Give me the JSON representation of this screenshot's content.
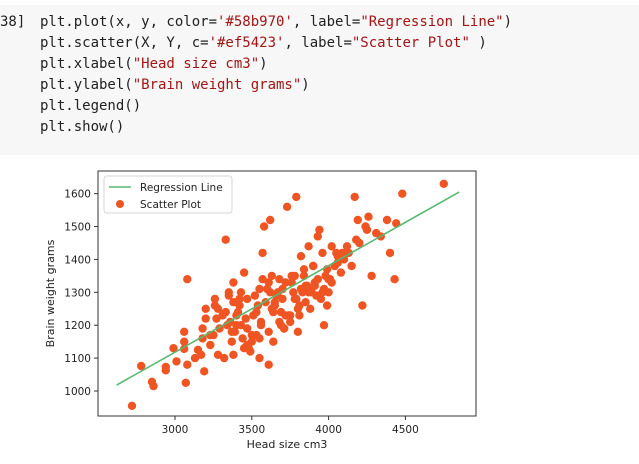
{
  "cell": {
    "prompt": "38]",
    "lines": [
      {
        "pre": "plt.plot(x, y, color=",
        "s1": "'#58b970'",
        "mid": ", label=",
        "s2": "\"Regression Line\"",
        "post": ")"
      },
      {
        "pre": "plt.scatter(X, Y, c=",
        "s1": "'#ef5423'",
        "mid": ", label=",
        "s2": "\"Scatter Plot\"",
        "post": " )"
      },
      {
        "pre": "plt.xlabel(",
        "s1": "\"Head size cm3\"",
        "mid": "",
        "s2": "",
        "post": ")"
      },
      {
        "pre": "plt.ylabel(",
        "s1": "\"Brain weight grams\"",
        "mid": "",
        "s2": "",
        "post": ")"
      },
      {
        "pre": "plt.legend()",
        "s1": "",
        "mid": "",
        "s2": "",
        "post": ""
      },
      {
        "pre": "plt.show()",
        "s1": "",
        "mid": "",
        "s2": "",
        "post": ""
      }
    ]
  },
  "chart_data": {
    "type": "scatter",
    "title": "",
    "xlabel": "Head size cm3",
    "ylabel": "Brain weight grams",
    "xticks": [
      3000,
      3500,
      4000,
      4500
    ],
    "yticks": [
      1000,
      1100,
      1200,
      1300,
      1400,
      1500,
      1600
    ],
    "xlim": [
      2500,
      4980
    ],
    "ylim": [
      920,
      1665
    ],
    "legend": {
      "position": "upper left",
      "entries": [
        "Regression Line",
        "Scatter Plot"
      ]
    },
    "colors": {
      "line": "#58b970",
      "scatter": "#ef5423"
    },
    "series": [
      {
        "name": "Regression Line",
        "type": "line",
        "x": [
          2620,
          4850
        ],
        "y": [
          1018,
          1605
        ]
      },
      {
        "name": "Scatter Plot",
        "type": "scatter",
        "x": [
          2720,
          2780,
          2850,
          2860,
          2940,
          2940,
          2990,
          3010,
          3060,
          3070,
          3060,
          3060,
          3080,
          3080,
          3130,
          3150,
          3180,
          3200,
          3180,
          3170,
          3190,
          3230,
          3250,
          3270,
          3280,
          3260,
          3320,
          3330,
          3330,
          3350,
          3370,
          3380,
          3380,
          3390,
          3400,
          3410,
          3420,
          3430,
          3450,
          3460,
          3470,
          3480,
          3500,
          3520,
          3540,
          3550,
          3560,
          3570,
          3580,
          3600,
          3610,
          3620,
          3630,
          3640,
          3650,
          3660,
          3670,
          3680,
          3690,
          3700,
          3710,
          3720,
          3730,
          3740,
          3750,
          3760,
          3770,
          3780,
          3790,
          3800,
          3810,
          3820,
          3830,
          3840,
          3850,
          3860,
          3870,
          3880,
          3890,
          3900,
          3910,
          3920,
          3930,
          3940,
          3950,
          3960,
          3970,
          3980,
          3990,
          4000,
          4010,
          4020,
          4040,
          4060,
          4080,
          4100,
          4120,
          4150,
          4170,
          4190,
          4200,
          4220,
          4240,
          4260,
          4280,
          4310,
          4340,
          4380,
          4400,
          4430,
          4440,
          4480,
          4750,
          3280,
          3350,
          3420,
          3510,
          3570,
          3620,
          3700,
          3760,
          3820,
          3880,
          3940,
          4000,
          4050,
          3340,
          3400,
          3470,
          3530,
          3590,
          3650,
          3720,
          3790,
          3850,
          3910,
          3970,
          3230,
          3290,
          3360,
          3440,
          3500,
          3560,
          3630,
          3690,
          3750,
          3810,
          3450,
          3530,
          3610,
          3680,
          3740,
          3800,
          3870,
          3930,
          3990,
          4060,
          4130,
          3380,
          3470,
          3550,
          3640,
          3710,
          3780,
          3840,
          3900,
          3960,
          4020,
          4090,
          4180,
          4250,
          3200,
          3260,
          3310,
          3370,
          3430,
          3490,
          3550,
          3610
        ],
        "y": [
          955,
          1076,
          1028,
          1015,
          1073,
          1063,
          1130,
          1090,
          1128,
          1025,
          1150,
          1180,
          1340,
          1080,
          1100,
          1125,
          1190,
          1220,
          1160,
          1110,
          1060,
          1140,
          1170,
          1220,
          1110,
          1260,
          1100,
          1460,
          1240,
          1300,
          1150,
          1270,
          1330,
          1180,
          1200,
          1240,
          1280,
          1300,
          1360,
          1220,
          1190,
          1130,
          1170,
          1290,
          1260,
          1310,
          1210,
          1420,
          1500,
          1310,
          1330,
          1520,
          1350,
          1240,
          1270,
          1290,
          1300,
          1340,
          1240,
          1280,
          1190,
          1330,
          1560,
          1230,
          1210,
          1350,
          1300,
          1280,
          1590,
          1180,
          1230,
          1410,
          1300,
          1350,
          1270,
          1320,
          1440,
          1250,
          1300,
          1380,
          1330,
          1290,
          1470,
          1490,
          1280,
          1300,
          1200,
          1350,
          1260,
          1300,
          1340,
          1330,
          1380,
          1410,
          1360,
          1400,
          1440,
          1380,
          1590,
          1520,
          1450,
          1260,
          1500,
          1530,
          1350,
          1480,
          1470,
          1520,
          1420,
          1340,
          1510,
          1600,
          1630,
          1250,
          1290,
          1260,
          1230,
          1340,
          1300,
          1310,
          1330,
          1310,
          1310,
          1290,
          1340,
          1420,
          1200,
          1230,
          1280,
          1240,
          1270,
          1260,
          1230,
          1280,
          1320,
          1320,
          1310,
          1170,
          1190,
          1210,
          1160,
          1150,
          1200,
          1250,
          1200,
          1230,
          1260,
          1130,
          1170,
          1180,
          1210,
          1230,
          1250,
          1300,
          1340,
          1370,
          1390,
          1420,
          1110,
          1140,
          1160,
          1150,
          1190,
          1350,
          1370,
          1380,
          1420,
          1440,
          1420,
          1460,
          1490,
          1250,
          1280,
          1230,
          1180,
          1200,
          1120,
          1100,
          1080
        ]
      }
    ]
  }
}
